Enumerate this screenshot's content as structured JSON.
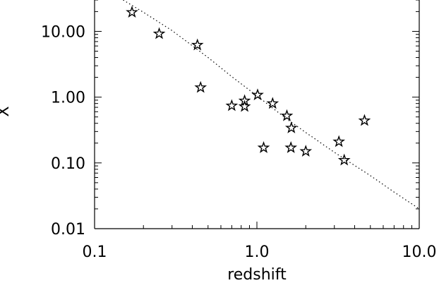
{
  "chart_data": {
    "type": "scatter",
    "title": "",
    "xlabel": "redshift",
    "ylabel": "X",
    "xscale": "log",
    "yscale": "log",
    "xlim": [
      0.1,
      10.0
    ],
    "ylim": [
      0.01,
      30
    ],
    "grid": false,
    "xticks": [
      {
        "value": 0.1,
        "label": "0.1"
      },
      {
        "value": 1.0,
        "label": "1.0"
      },
      {
        "value": 10.0,
        "label": "10.0"
      }
    ],
    "yticks": [
      {
        "value": 0.01,
        "label": "0.01"
      },
      {
        "value": 0.1,
        "label": "0.10"
      },
      {
        "value": 1.0,
        "label": "1.00"
      },
      {
        "value": 10.0,
        "label": "10.00"
      }
    ],
    "series": [
      {
        "marker": "star",
        "points": [
          {
            "x": 0.17,
            "y": 19.5
          },
          {
            "x": 0.25,
            "y": 9.2
          },
          {
            "x": 0.43,
            "y": 6.2
          },
          {
            "x": 0.45,
            "y": 1.4
          },
          {
            "x": 0.7,
            "y": 0.74
          },
          {
            "x": 0.84,
            "y": 0.88
          },
          {
            "x": 0.84,
            "y": 0.72
          },
          {
            "x": 1.01,
            "y": 1.08
          },
          {
            "x": 1.1,
            "y": 0.17
          },
          {
            "x": 1.25,
            "y": 0.8
          },
          {
            "x": 1.53,
            "y": 0.52
          },
          {
            "x": 1.62,
            "y": 0.17
          },
          {
            "x": 1.63,
            "y": 0.34
          },
          {
            "x": 2.0,
            "y": 0.15
          },
          {
            "x": 3.2,
            "y": 0.21
          },
          {
            "x": 3.45,
            "y": 0.11
          },
          {
            "x": 4.6,
            "y": 0.44
          }
        ]
      },
      {
        "marker": "none",
        "line_style": "dotted",
        "points": [
          {
            "x": 0.15,
            "y": 30
          },
          {
            "x": 0.2,
            "y": 19.5
          },
          {
            "x": 0.3,
            "y": 10.3
          },
          {
            "x": 0.5,
            "y": 4.0
          },
          {
            "x": 0.7,
            "y": 2.05
          },
          {
            "x": 1.0,
            "y": 1.05
          },
          {
            "x": 1.5,
            "y": 0.48
          },
          {
            "x": 2.0,
            "y": 0.29
          },
          {
            "x": 3.0,
            "y": 0.145
          },
          {
            "x": 5.0,
            "y": 0.064
          },
          {
            "x": 7.0,
            "y": 0.036
          },
          {
            "x": 10.0,
            "y": 0.02
          }
        ]
      }
    ]
  }
}
